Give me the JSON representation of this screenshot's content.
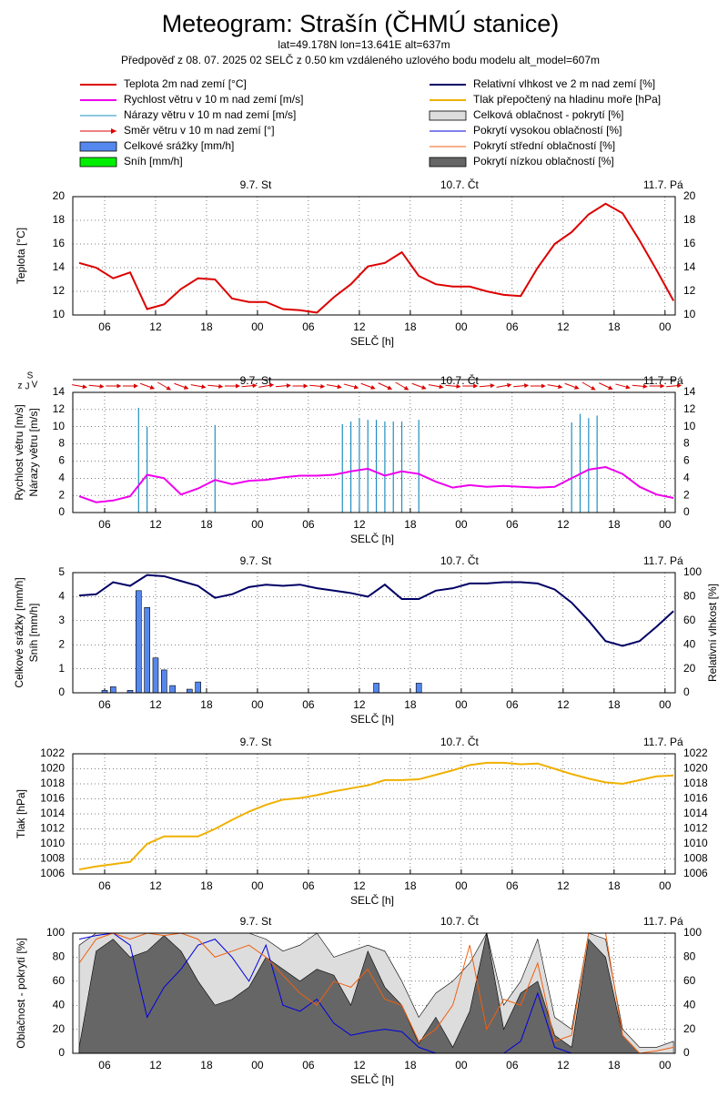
{
  "title": "Meteogram: Strašín (ČHMÚ stanice)",
  "subtitle": "lat=49.178N lon=13.641E alt=637m",
  "subtitle2": "Předpověď z 08. 07. 2025 02 SELČ z 0.50 km vzdáleného uzlového bodu modelu alt_model=607m",
  "legend": [
    {
      "name": "Teplota 2m nad zemí [°C]",
      "color": "#dd0000",
      "style": "line"
    },
    {
      "name": "Rychlost větru v 10 m nad zemí [m/s]",
      "color": "#ee00ee",
      "style": "line"
    },
    {
      "name": "Nárazy větru v 10 m nad zemí [m/s]",
      "color": "#1f8fbf",
      "style": "thin"
    },
    {
      "name": "Směr větru v 10 m nad zemí [°]",
      "color": "#dd0000",
      "style": "arrow"
    },
    {
      "name": "Celkové srážky [mm/h]",
      "color": "#5588ee",
      "style": "box"
    },
    {
      "name": "Sníh [mm/h]",
      "color": "#00ee00",
      "style": "box"
    },
    {
      "name": "Relativní vlhkost ve 2 m nad zemí [%]",
      "color": "#000066",
      "style": "line"
    },
    {
      "name": "Tlak přepočtený na hladinu moře [hPa]",
      "color": "#f0b000",
      "style": "line"
    },
    {
      "name": "Celková oblačnost - pokrytí [%]",
      "color": "#dddddd",
      "style": "box"
    },
    {
      "name": "Pokrytí vysokou oblačností [%]",
      "color": "#0000dd",
      "style": "thin"
    },
    {
      "name": "Pokrytí střední oblačností [%]",
      "color": "#f06010",
      "style": "thin"
    },
    {
      "name": "Pokrytí nízkou oblačností [%]",
      "color": "#666666",
      "style": "box"
    }
  ],
  "chart_data": [
    {
      "type": "line",
      "ylabel": [
        "Teplota [°C]"
      ],
      "xlabel": "SELČ [h]",
      "xlim": [
        2.25,
        73.2
      ],
      "ylim": [
        10,
        20
      ],
      "yticks": [
        10,
        12,
        14,
        16,
        18,
        20
      ],
      "mirror": true,
      "grid": true,
      "xticks": [
        {
          "value": 6,
          "label": "06"
        },
        {
          "value": 12,
          "label": "12"
        },
        {
          "value": 18,
          "label": "18"
        },
        {
          "value": 24,
          "label": "00"
        },
        {
          "value": 30,
          "label": "06"
        },
        {
          "value": 36,
          "label": "12"
        },
        {
          "value": 42,
          "label": "18"
        },
        {
          "value": 48,
          "label": "00"
        },
        {
          "value": 54,
          "label": "06"
        },
        {
          "value": 60,
          "label": "12"
        },
        {
          "value": 66,
          "label": "18"
        },
        {
          "value": 72,
          "label": "00"
        }
      ],
      "day_ticks": [
        {
          "value": 24,
          "label": "9.7. St"
        },
        {
          "value": 48,
          "label": "10.7. Čt"
        },
        {
          "value": 72,
          "label": "11.7. Pá"
        }
      ],
      "x": [
        3,
        5,
        7,
        9,
        11,
        13,
        15,
        17,
        19,
        21,
        23,
        25,
        27,
        29,
        31,
        33,
        35,
        37,
        39,
        41,
        43,
        45,
        47,
        49,
        51,
        53,
        55,
        57,
        59,
        61,
        63,
        65,
        67,
        69,
        71,
        73
      ],
      "series": [
        {
          "kind": "line",
          "color": "#dd0000",
          "values": [
            14.4,
            14.0,
            13.1,
            13.6,
            10.5,
            10.9,
            12.2,
            13.1,
            13.0,
            11.4,
            11.1,
            11.1,
            10.5,
            10.4,
            10.2,
            11.5,
            12.6,
            14.1,
            14.4,
            15.3,
            13.3,
            12.6,
            12.4,
            12.4,
            12.0,
            11.7,
            11.6,
            14.0,
            16.0,
            17.0,
            18.5,
            19.4,
            18.6,
            16.3,
            13.8,
            11.2
          ]
        }
      ]
    },
    {
      "type": "line",
      "ylabel": [
        "Rychlost větru [m/s]",
        "Nárazy větru [m/s]"
      ],
      "direction_label": [
        "z",
        "J",
        "S",
        "V"
      ],
      "xlabel": "SELČ [h]",
      "xlim": [
        2.25,
        73.2
      ],
      "ylim": [
        0,
        14
      ],
      "yticks": [
        0,
        2,
        4,
        6,
        8,
        10,
        12,
        14
      ],
      "mirror": true,
      "grid": true,
      "xticks": [
        {
          "value": 6,
          "label": "06"
        },
        {
          "value": 12,
          "label": "12"
        },
        {
          "value": 18,
          "label": "18"
        },
        {
          "value": 24,
          "label": "00"
        },
        {
          "value": 30,
          "label": "06"
        },
        {
          "value": 36,
          "label": "12"
        },
        {
          "value": 42,
          "label": "18"
        },
        {
          "value": 48,
          "label": "00"
        },
        {
          "value": 54,
          "label": "06"
        },
        {
          "value": 60,
          "label": "12"
        },
        {
          "value": 66,
          "label": "18"
        },
        {
          "value": 72,
          "label": "00"
        }
      ],
      "day_ticks": [
        {
          "value": 24,
          "label": "9.7. St"
        },
        {
          "value": 48,
          "label": "10.7. Čt"
        },
        {
          "value": 72,
          "label": "11.7. Pá"
        }
      ],
      "x": [
        3,
        5,
        7,
        9,
        11,
        13,
        15,
        17,
        19,
        21,
        23,
        25,
        27,
        29,
        31,
        33,
        35,
        37,
        39,
        41,
        43,
        45,
        47,
        49,
        51,
        53,
        55,
        57,
        59,
        61,
        63,
        65,
        67,
        69,
        71,
        73
      ],
      "series": [
        {
          "kind": "spikes",
          "color": "#1f8fbf",
          "x": [
            10,
            11,
            19,
            34,
            35,
            36,
            37,
            38,
            39,
            40,
            41,
            43,
            61,
            62,
            63,
            64
          ],
          "values": [
            12.2,
            10,
            10.2,
            10.3,
            10.6,
            11,
            10.8,
            10.8,
            10.6,
            10.6,
            10.6,
            10.8,
            10.5,
            11.5,
            11,
            11.3
          ]
        },
        {
          "kind": "line",
          "color": "#ee00ee",
          "values": [
            1.9,
            1.2,
            1.4,
            1.9,
            4.4,
            4.0,
            2.1,
            2.8,
            3.8,
            3.3,
            3.7,
            3.8,
            4.1,
            4.3,
            4.3,
            4.4,
            4.8,
            5.1,
            4.3,
            4.8,
            4.5,
            3.6,
            2.9,
            3.2,
            3.0,
            3.1,
            3.0,
            2.9,
            3.0,
            4.0,
            5.0,
            5.3,
            4.5,
            3.0,
            2.1,
            1.7
          ]
        },
        {
          "kind": "arrows",
          "color": "#dd0000",
          "values": [
            280,
            275,
            270,
            270,
            290,
            300,
            290,
            280,
            275,
            270,
            265,
            260,
            265,
            270,
            275,
            280,
            285,
            290,
            295,
            300,
            290,
            280,
            275,
            270,
            265,
            260,
            265,
            270,
            280,
            290,
            300,
            295,
            285,
            275,
            270,
            265
          ]
        }
      ]
    },
    {
      "type": "line",
      "ylabel": [
        "Celkové srážky [mm/h]",
        "Sníh [mm/h]"
      ],
      "y2label": "Relativní vlhkost [%]",
      "xlabel": "SELČ [h]",
      "xlim": [
        2.25,
        73.2
      ],
      "ylim": [
        0,
        5
      ],
      "yticks": [
        0,
        1,
        2,
        3,
        4,
        5
      ],
      "y2lim": [
        0,
        100
      ],
      "y2ticks": [
        0,
        20,
        40,
        60,
        80,
        100
      ],
      "grid": true,
      "xticks": [
        {
          "value": 6,
          "label": "06"
        },
        {
          "value": 12,
          "label": "12"
        },
        {
          "value": 18,
          "label": "18"
        },
        {
          "value": 24,
          "label": "00"
        },
        {
          "value": 30,
          "label": "06"
        },
        {
          "value": 36,
          "label": "12"
        },
        {
          "value": 42,
          "label": "18"
        },
        {
          "value": 48,
          "label": "00"
        },
        {
          "value": 54,
          "label": "06"
        },
        {
          "value": 60,
          "label": "12"
        },
        {
          "value": 66,
          "label": "18"
        },
        {
          "value": 72,
          "label": "00"
        }
      ],
      "day_ticks": [
        {
          "value": 24,
          "label": "9.7. St"
        },
        {
          "value": 48,
          "label": "10.7. Čt"
        },
        {
          "value": 72,
          "label": "11.7. Pá"
        }
      ],
      "x": [
        3,
        5,
        7,
        9,
        11,
        13,
        15,
        17,
        19,
        21,
        23,
        25,
        27,
        29,
        31,
        33,
        35,
        37,
        39,
        41,
        43,
        45,
        47,
        49,
        51,
        53,
        55,
        57,
        59,
        61,
        63,
        65,
        67,
        69,
        71,
        73
      ],
      "series": [
        {
          "kind": "bars",
          "color": "#5588ee",
          "x": [
            6,
            7,
            9,
            10,
            11,
            12,
            13,
            14,
            16,
            17,
            38,
            43
          ],
          "values": [
            0.1,
            0.25,
            0.1,
            4.25,
            3.55,
            1.45,
            0.95,
            0.3,
            0.15,
            0.45,
            0.4,
            0.4
          ]
        },
        {
          "kind": "line",
          "axis": "y2",
          "color": "#000066",
          "values": [
            81,
            82,
            92,
            89,
            98,
            97,
            93,
            89,
            79,
            82,
            88,
            90,
            89,
            90,
            87,
            85,
            83,
            80,
            90,
            78,
            78,
            85,
            87,
            91,
            91,
            92,
            92,
            91,
            86,
            75,
            60,
            43,
            39,
            43,
            55,
            68
          ]
        }
      ]
    },
    {
      "type": "line",
      "ylabel": [
        "Tlak [hPa]"
      ],
      "xlabel": "SELČ [h]",
      "xlim": [
        2.25,
        73.2
      ],
      "ylim": [
        1006,
        1022
      ],
      "yticks": [
        1006,
        1008,
        1010,
        1012,
        1014,
        1016,
        1018,
        1020,
        1022
      ],
      "mirror": true,
      "grid": true,
      "xticks": [
        {
          "value": 6,
          "label": "06"
        },
        {
          "value": 12,
          "label": "12"
        },
        {
          "value": 18,
          "label": "18"
        },
        {
          "value": 24,
          "label": "00"
        },
        {
          "value": 30,
          "label": "06"
        },
        {
          "value": 36,
          "label": "12"
        },
        {
          "value": 42,
          "label": "18"
        },
        {
          "value": 48,
          "label": "00"
        },
        {
          "value": 54,
          "label": "06"
        },
        {
          "value": 60,
          "label": "12"
        },
        {
          "value": 66,
          "label": "18"
        },
        {
          "value": 72,
          "label": "00"
        }
      ],
      "day_ticks": [
        {
          "value": 24,
          "label": "9.7. St"
        },
        {
          "value": 48,
          "label": "10.7. Čt"
        },
        {
          "value": 72,
          "label": "11.7. Pá"
        }
      ],
      "x": [
        3,
        5,
        7,
        9,
        11,
        13,
        15,
        17,
        19,
        21,
        23,
        25,
        27,
        29,
        31,
        33,
        35,
        37,
        39,
        41,
        43,
        45,
        47,
        49,
        51,
        53,
        55,
        57,
        59,
        61,
        63,
        65,
        67,
        69,
        71,
        73
      ],
      "series": [
        {
          "kind": "line",
          "color": "#f0b000",
          "values": [
            1006.6,
            1007.0,
            1007.3,
            1007.6,
            1010.0,
            1011.0,
            1011.0,
            1011.0,
            1012.0,
            1013.2,
            1014.3,
            1015.2,
            1015.9,
            1016.1,
            1016.5,
            1017.0,
            1017.4,
            1017.8,
            1018.5,
            1018.5,
            1018.6,
            1019.2,
            1019.8,
            1020.5,
            1020.8,
            1020.8,
            1020.6,
            1020.7,
            1020.0,
            1019.3,
            1018.7,
            1018.2,
            1018.0,
            1018.5,
            1019.0,
            1019.1
          ]
        }
      ]
    },
    {
      "type": "line",
      "ylabel": [
        "Oblačnost - pokrytí [%]"
      ],
      "xlabel": "SELČ [h]",
      "xlim": [
        2.25,
        73.2
      ],
      "ylim": [
        0,
        100
      ],
      "yticks": [
        0,
        20,
        40,
        60,
        80,
        100
      ],
      "mirror": true,
      "grid": true,
      "xticks": [
        {
          "value": 6,
          "label": "06"
        },
        {
          "value": 12,
          "label": "12"
        },
        {
          "value": 18,
          "label": "18"
        },
        {
          "value": 24,
          "label": "00"
        },
        {
          "value": 30,
          "label": "06"
        },
        {
          "value": 36,
          "label": "12"
        },
        {
          "value": 42,
          "label": "18"
        },
        {
          "value": 48,
          "label": "00"
        },
        {
          "value": 54,
          "label": "06"
        },
        {
          "value": 60,
          "label": "12"
        },
        {
          "value": 66,
          "label": "18"
        },
        {
          "value": 72,
          "label": "00"
        }
      ],
      "day_ticks": [
        {
          "value": 24,
          "label": "9.7. St"
        },
        {
          "value": 48,
          "label": "10.7. Čt"
        },
        {
          "value": 72,
          "label": "11.7. Pá"
        }
      ],
      "x": [
        3,
        5,
        7,
        9,
        11,
        13,
        15,
        17,
        19,
        21,
        23,
        25,
        27,
        29,
        31,
        33,
        35,
        37,
        39,
        41,
        43,
        45,
        47,
        49,
        51,
        53,
        55,
        57,
        59,
        61,
        63,
        65,
        67,
        69,
        71,
        73
      ],
      "series": [
        {
          "kind": "area",
          "color": "#dddddd",
          "values": [
            90,
            100,
            100,
            100,
            100,
            100,
            100,
            100,
            100,
            100,
            100,
            95,
            85,
            90,
            100,
            80,
            85,
            90,
            85,
            60,
            30,
            50,
            60,
            75,
            100,
            40,
            60,
            95,
            30,
            20,
            100,
            95,
            20,
            5,
            5,
            10
          ]
        },
        {
          "kind": "area",
          "color": "#666666",
          "values": [
            5,
            85,
            95,
            80,
            85,
            98,
            85,
            60,
            40,
            45,
            55,
            80,
            70,
            60,
            70,
            65,
            40,
            85,
            55,
            40,
            8,
            30,
            5,
            35,
            100,
            20,
            50,
            60,
            15,
            5,
            95,
            80,
            15,
            0,
            0,
            0
          ]
        },
        {
          "kind": "line",
          "color": "#0000dd",
          "width": 1,
          "values": [
            95,
            98,
            100,
            90,
            30,
            55,
            70,
            90,
            95,
            80,
            60,
            90,
            40,
            35,
            45,
            25,
            15,
            18,
            20,
            18,
            5,
            0,
            0,
            0,
            0,
            0,
            10,
            50,
            5,
            0,
            0,
            0,
            0,
            0,
            0,
            0
          ]
        },
        {
          "kind": "line",
          "color": "#f06010",
          "width": 1,
          "values": [
            75,
            95,
            100,
            95,
            100,
            98,
            100,
            95,
            80,
            85,
            90,
            80,
            65,
            50,
            40,
            60,
            55,
            70,
            45,
            40,
            10,
            20,
            40,
            90,
            20,
            45,
            40,
            75,
            10,
            15,
            100,
            100,
            15,
            0,
            2,
            5
          ]
        }
      ]
    }
  ]
}
